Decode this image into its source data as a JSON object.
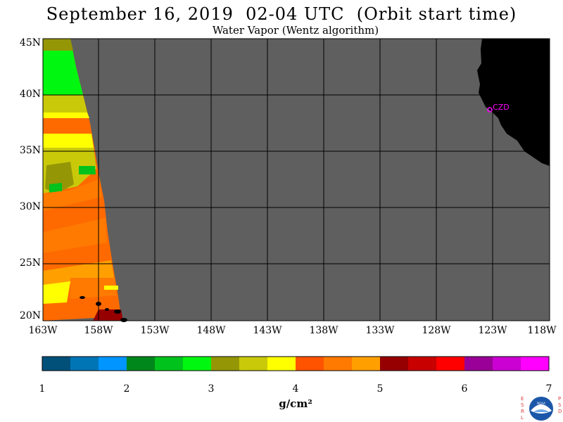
{
  "header": {
    "title": "September 16, 2019  02-04 UTC  (Orbit start time)",
    "subtitle": "Water Vapor (Wentz algorithm)"
  },
  "map": {
    "lat_labels": [
      "45N",
      "40N",
      "35N",
      "30N",
      "25N",
      "20N"
    ],
    "lon_labels": [
      "163W",
      "158W",
      "153W",
      "148W",
      "143W",
      "138W",
      "133W",
      "128W",
      "123W",
      "118W"
    ],
    "station_label": "CZD",
    "no_data_color": "#5f5f5f",
    "land_color": "#000000",
    "grid_color": "#000000",
    "station_color": "#ff00ff"
  },
  "colorbar": {
    "ticks": [
      "1",
      "2",
      "3",
      "4",
      "5",
      "6",
      "7"
    ],
    "unit": "g/cm²",
    "colors": [
      "#00507a",
      "#0075b5",
      "#0095ff",
      "#00871b",
      "#00c21c",
      "#00f70f",
      "#959606",
      "#c9c90a",
      "#ffff00",
      "#ff5300",
      "#ff7a00",
      "#ff9f00",
      "#970000",
      "#c80000",
      "#ff0000",
      "#9a0097",
      "#cb00d2",
      "#ff00ff"
    ]
  },
  "logo": {
    "left_letters": "ESRL",
    "right_letters": "PSD",
    "center_text": "NOAA"
  }
}
